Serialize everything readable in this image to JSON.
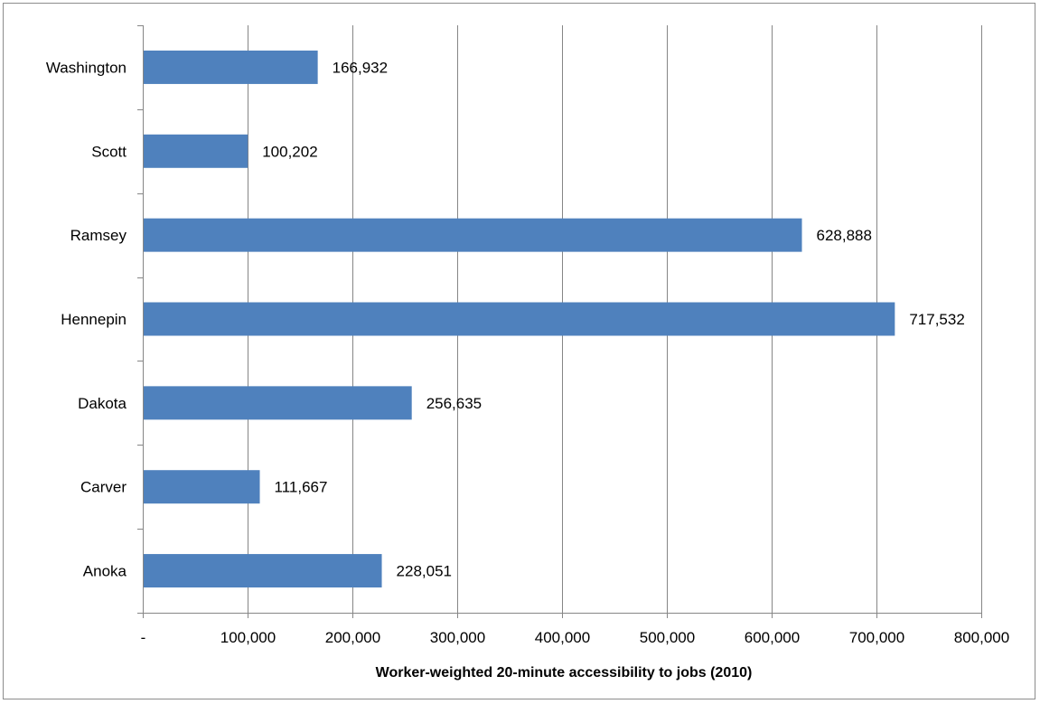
{
  "chart_data": {
    "type": "bar",
    "orientation": "horizontal",
    "title": "",
    "xlabel": "Worker-weighted 20-minute accessibility to jobs (2010)",
    "ylabel": "",
    "categories": [
      "Anoka",
      "Carver",
      "Dakota",
      "Hennepin",
      "Ramsey",
      "Scott",
      "Washington"
    ],
    "values": [
      228051,
      111667,
      256635,
      717532,
      628888,
      100202,
      166932
    ],
    "data_labels": [
      "228,051",
      "111,667",
      "256,635",
      "717,532",
      "628,888",
      "100,202",
      "166,932"
    ],
    "xlim": [
      0,
      800000
    ],
    "x_ticks": [
      0,
      100000,
      200000,
      300000,
      400000,
      500000,
      600000,
      700000,
      800000
    ],
    "x_tick_labels": [
      "-",
      "100,000",
      "200,000",
      "300,000",
      "400,000",
      "500,000",
      "600,000",
      "700,000",
      "800,000"
    ],
    "grid": "vertical",
    "legend": "none",
    "bar_color": "#4f81bd",
    "grid_color": "#868686"
  }
}
